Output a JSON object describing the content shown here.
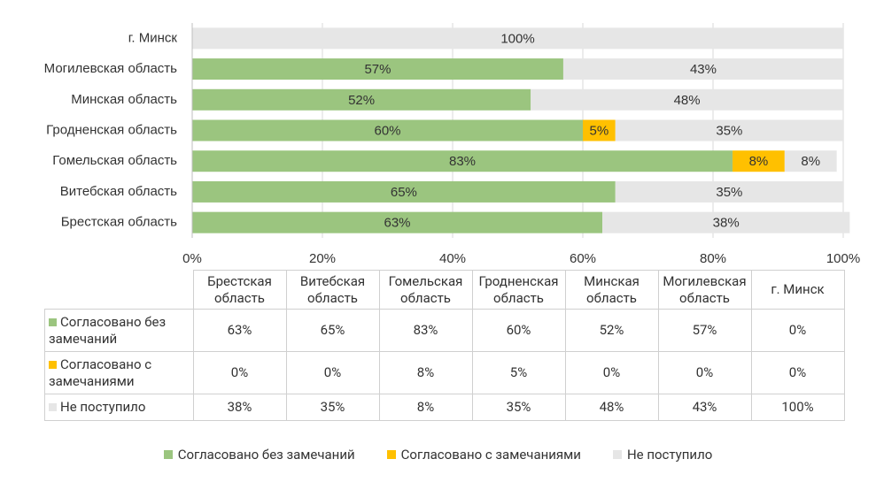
{
  "chart_data": {
    "type": "stacked-bar-horizontal",
    "categories": [
      "Брестская область",
      "Витебская область",
      "Гомельская область",
      "Гродненская область",
      "Минская область",
      "Могилевская область",
      "г. Минск"
    ],
    "series": [
      {
        "name": "Согласовано без замечаний",
        "color": "#9bc57f",
        "values": [
          63,
          65,
          83,
          60,
          52,
          57,
          0
        ],
        "value_labels": [
          "63%",
          "65%",
          "83%",
          "60%",
          "52%",
          "57%",
          "0%"
        ]
      },
      {
        "name": "Согласовано с замечаниями",
        "color": "#ffc000",
        "values": [
          0,
          0,
          8,
          5,
          0,
          0,
          0
        ],
        "value_labels": [
          "0%",
          "0%",
          "8%",
          "5%",
          "0%",
          "0%",
          "0%"
        ]
      },
      {
        "name": "Не поступило",
        "color": "#e6e6e6",
        "values": [
          38,
          35,
          8,
          35,
          48,
          43,
          100
        ],
        "value_labels": [
          "38%",
          "35%",
          "8%",
          "35%",
          "48%",
          "43%",
          "100%"
        ]
      }
    ],
    "xlim": [
      0,
      100
    ],
    "xticks": [
      {
        "value": 0,
        "label": "0%"
      },
      {
        "value": 20,
        "label": "20%"
      },
      {
        "value": 40,
        "label": "40%"
      },
      {
        "value": 60,
        "label": "60%"
      },
      {
        "value": 80,
        "label": "80%"
      },
      {
        "value": 100,
        "label": "100%"
      }
    ],
    "grid": true,
    "legend": "bottom"
  }
}
